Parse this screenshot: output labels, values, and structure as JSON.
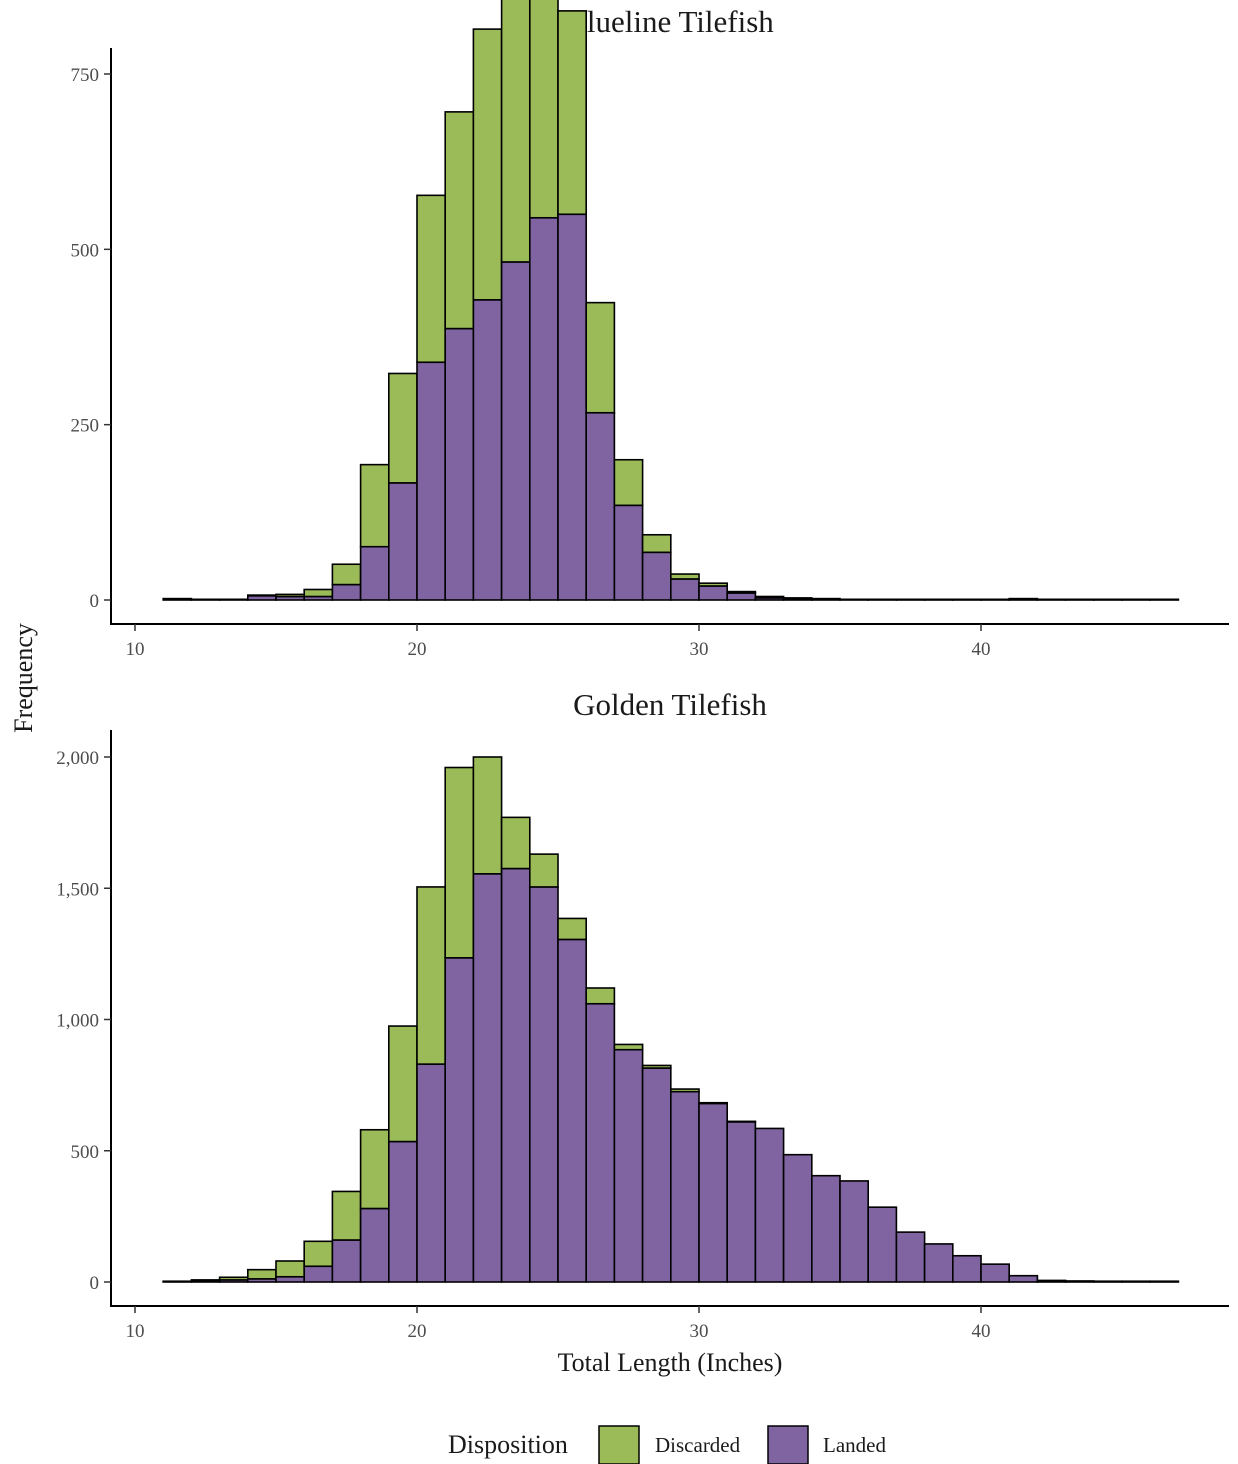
{
  "chart_data": {
    "type": "bar",
    "stacked": true,
    "bin_width": 1,
    "xlabel": "Total Length (Inches)",
    "ylabel": "Frequency",
    "legend": {
      "title": "Disposition",
      "placement": "bottom",
      "entries": [
        {
          "name": "Discarded",
          "color": "#9bbb59"
        },
        {
          "name": "Landed",
          "color": "#8064a2"
        }
      ]
    },
    "panels": [
      {
        "title": "Blueline Tilefish",
        "xlim": [
          10.2,
          47
        ],
        "ylim": [
          0,
          920
        ],
        "x_ticks": [
          10,
          20,
          30,
          40
        ],
        "y_ticks": [
          0,
          250,
          500,
          750
        ],
        "y_tick_labels": [
          "0",
          "250",
          "500",
          "750"
        ],
        "bin_start": [
          11,
          12,
          13,
          14,
          15,
          16,
          17,
          18,
          19,
          20,
          21,
          22,
          23,
          24,
          25,
          26,
          27,
          28,
          29,
          30,
          31,
          32,
          33,
          34,
          35,
          36,
          37,
          38,
          39,
          40,
          41,
          42,
          43,
          44,
          45,
          46
        ],
        "series": [
          {
            "name": "Landed",
            "values": [
              2,
              1,
              1,
              6,
              5,
              5,
              22,
              76,
              167,
              339,
              387,
              428,
              482,
              545,
              550,
              267,
              135,
              68,
              30,
              20,
              10,
              3,
              2,
              1,
              1,
              1,
              1,
              1,
              1,
              1,
              2,
              1,
              1,
              1,
              1,
              1
            ]
          },
          {
            "name": "Discarded",
            "values": [
              0,
              0,
              0,
              1,
              3,
              10,
              29,
              117,
              156,
              238,
              309,
              386,
              436,
              324,
              290,
              157,
              65,
              25,
              7,
              4,
              2,
              2,
              1,
              1,
              0,
              0,
              0,
              0,
              0,
              0,
              0,
              0,
              0,
              0,
              0,
              0
            ]
          }
        ]
      },
      {
        "title": "Golden Tilefish",
        "xlim": [
          10.2,
          47
        ],
        "ylim": [
          0,
          2000
        ],
        "x_ticks": [
          10,
          20,
          30,
          40
        ],
        "y_ticks": [
          0,
          500,
          1000,
          1500,
          2000
        ],
        "y_tick_labels": [
          "0",
          "500",
          "1,000",
          "1,500",
          "2,000"
        ],
        "bin_start": [
          11,
          12,
          13,
          14,
          15,
          16,
          17,
          18,
          19,
          20,
          21,
          22,
          23,
          24,
          25,
          26,
          27,
          28,
          29,
          30,
          31,
          32,
          33,
          34,
          35,
          36,
          37,
          38,
          39,
          40,
          41,
          42,
          43,
          44,
          45,
          46
        ],
        "series": [
          {
            "name": "Landed",
            "values": [
              2,
              4,
              8,
              12,
              20,
              60,
              160,
              280,
              535,
              830,
              1235,
              1555,
              1575,
              1505,
              1305,
              1060,
              885,
              815,
              725,
              680,
              610,
              585,
              485,
              405,
              385,
              285,
              190,
              145,
              100,
              68,
              24,
              6,
              4,
              3,
              3,
              3
            ]
          },
          {
            "name": "Discarded",
            "values": [
              1,
              4,
              10,
              35,
              60,
              95,
              185,
              300,
              440,
              675,
              725,
              445,
              195,
              125,
              80,
              60,
              20,
              10,
              10,
              3,
              2,
              0,
              0,
              0,
              0,
              0,
              0,
              0,
              0,
              0,
              0,
              0,
              0,
              0,
              0,
              0
            ]
          }
        ]
      }
    ]
  }
}
